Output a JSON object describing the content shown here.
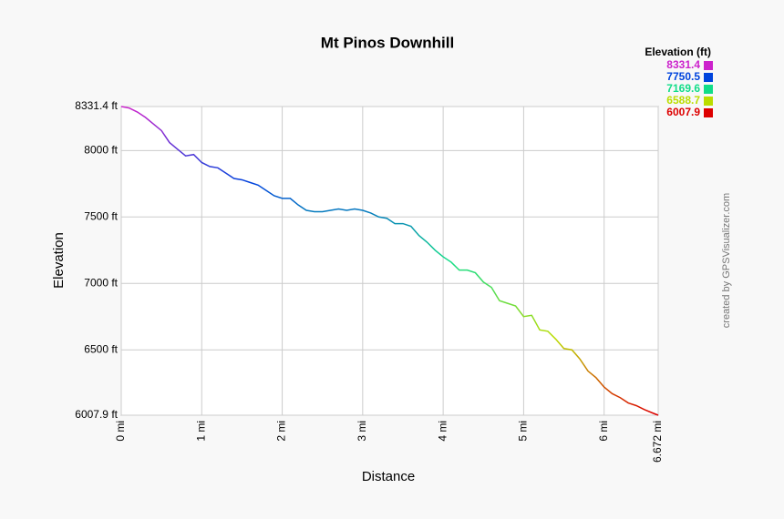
{
  "chart_data": {
    "type": "line",
    "title": "Mt Pinos Downhill",
    "x_label": "Distance",
    "y_label": "Elevation",
    "x": [
      0,
      0.1,
      0.2,
      0.3,
      0.4,
      0.5,
      0.6,
      0.7,
      0.8,
      0.9,
      1.0,
      1.1,
      1.2,
      1.3,
      1.4,
      1.5,
      1.6,
      1.7,
      1.8,
      1.9,
      2.0,
      2.1,
      2.2,
      2.3,
      2.4,
      2.5,
      2.6,
      2.7,
      2.8,
      2.9,
      3.0,
      3.1,
      3.2,
      3.3,
      3.4,
      3.5,
      3.6,
      3.7,
      3.8,
      3.9,
      4.0,
      4.1,
      4.2,
      4.3,
      4.4,
      4.5,
      4.6,
      4.7,
      4.8,
      4.9,
      5.0,
      5.1,
      5.2,
      5.3,
      5.4,
      5.5,
      5.6,
      5.7,
      5.8,
      5.9,
      6.0,
      6.1,
      6.2,
      6.3,
      6.4,
      6.5,
      6.6,
      6.672
    ],
    "values": [
      8331.4,
      8320,
      8290,
      8250,
      8200,
      8150,
      8060,
      8010,
      7960,
      7970,
      7910,
      7880,
      7870,
      7830,
      7790,
      7780,
      7760,
      7740,
      7700,
      7660,
      7640,
      7640,
      7590,
      7550,
      7540,
      7540,
      7550,
      7560,
      7550,
      7560,
      7550,
      7530,
      7500,
      7490,
      7450,
      7450,
      7430,
      7360,
      7310,
      7250,
      7200,
      7160,
      7100,
      7100,
      7080,
      7010,
      6970,
      6870,
      6850,
      6830,
      6750,
      6760,
      6650,
      6640,
      6580,
      6510,
      6500,
      6430,
      6340,
      6290,
      6220,
      6170,
      6140,
      6100,
      6080,
      6050,
      6025,
      6007.9
    ],
    "xlim": [
      0,
      6.672
    ],
    "ylim": [
      6007.9,
      8331.4
    ],
    "xticks": [
      {
        "value": 0,
        "label": "0 mi"
      },
      {
        "value": 1,
        "label": "1 mi"
      },
      {
        "value": 2,
        "label": "2 mi"
      },
      {
        "value": 3,
        "label": "3 mi"
      },
      {
        "value": 4,
        "label": "4 mi"
      },
      {
        "value": 5,
        "label": "5 mi"
      },
      {
        "value": 6,
        "label": "6 mi"
      },
      {
        "value": 6.672,
        "label": "6.672 mi"
      }
    ],
    "yticks": [
      {
        "value": 6007.9,
        "label": "6007.9 ft"
      },
      {
        "value": 6500,
        "label": "6500 ft"
      },
      {
        "value": 7000,
        "label": "7000 ft"
      },
      {
        "value": 7500,
        "label": "7500 ft"
      },
      {
        "value": 8000,
        "label": "8000 ft"
      },
      {
        "value": 8331.4,
        "label": "8331.4 ft"
      }
    ],
    "grid": true,
    "legend_title": "Elevation (ft)",
    "color_scale": [
      {
        "value": 8331.4,
        "color": "#cc22cc"
      },
      {
        "value": 7750.5,
        "color": "#0044dd"
      },
      {
        "value": 7169.6,
        "color": "#11dd88"
      },
      {
        "value": 6588.7,
        "color": "#bbdd00"
      },
      {
        "value": 6007.9,
        "color": "#dd0000"
      }
    ],
    "credit": "created by GPSVisualizer.com"
  }
}
